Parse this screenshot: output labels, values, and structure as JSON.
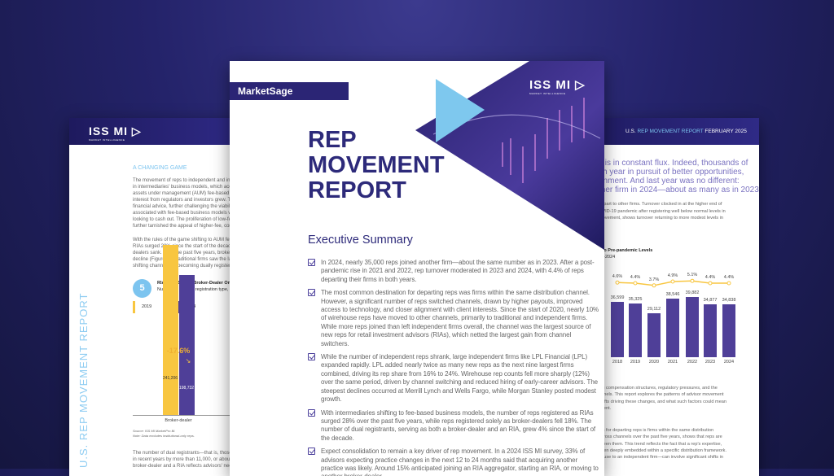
{
  "left_page": {
    "logo": "ISS MI",
    "logo_sub": "MARKET INTELLIGENCE",
    "section_heading": "A CHANGING GAME",
    "para1": [
      "The movement of reps to independent and inve",
      "in intermediaries' business models, which accel",
      "assets under management (AUM) fee-based a",
      "interest from regulators and investors grew. Th",
      "financial advice, further challenging the viabilit",
      "associated with fee-based business models w",
      "looking to cash out. The proliferation of low-fe",
      "further tarnished the appeal of higher-fee, com"
    ],
    "para2": [
      "With the rules of the game shifting to AUM fee",
      "RIAs surged 28% since the start of the decade",
      "dealers sank. Over the past five years, broker-",
      "decline (Figure 5). Traditional firms saw the lar",
      "shifting channels, or becoming dually registere"
    ],
    "figure": {
      "number": "5",
      "title": "RIA Reps Surge, Broker-Dealer Only R",
      "subtitle": "Number of reps by registration type, 2",
      "chart_data": {
        "type": "bar",
        "categories": [
          "Broker-dealer"
        ],
        "series": [
          {
            "name": "2019",
            "values": [
              241206
            ],
            "color": "#f8c640"
          },
          {
            "name": "2024",
            "values": [
              198732
            ],
            "color": "#4f3f98"
          }
        ],
        "value_labels": [
          "241,206",
          "198,732"
        ],
        "annotation": "-17.6%"
      },
      "source": "Source: ISS MI MarketPro BI.",
      "note": "Note: Data excludes institutional-only reps."
    },
    "para3": [
      "The number of dual registrants—that is, those",
      "in recent years by more than 11,000, or about 4",
      "broker-dealer and a RIA reflects advisors' need"
    ],
    "vertical_title": "U.S. REP MOVEMENT REPORT"
  },
  "center_page": {
    "brand": "MarketSage",
    "logo": "ISS MI",
    "logo_sub": "MARKET INTELLIGENCE",
    "title_lines": [
      "REP",
      "MOVEMENT",
      "REPORT"
    ],
    "section": "Executive Summary",
    "bullets": [
      "In 2024, nearly 35,000 reps joined another firm—about the same number as in 2023. After a post-pandemic rise in 2021 and 2022, rep turnover moderated in 2023 and 2024, with 4.4% of reps departing their firms in both years.",
      "The most common destination for departing reps was firms within the same distribution channel. However, a significant number of reps switched channels, drawn by higher payouts, improved access to technology, and closer alignment with client interests. Since the start of 2020, nearly 10% of wirehouse reps have moved to other channels, primarily to traditional and independent firms. While more reps joined than left independent firms overall, the channel was the largest source of new reps for retail investment advisors (RIAs), which netted the largest gain from channel switchers.",
      "While the number of independent reps shrank, large independent firms like LPL Financial (LPL) expanded rapidly. LPL added nearly twice as many new reps as the next nine largest firms combined, driving its rep share from 16% to 24%. Wirehouse rep counts fell more sharply (12%) over the same period, driven by channel switching and reduced hiring of early-career advisors. The steepest declines occurred at Merrill Lynch and Wells Fargo, while Morgan Stanley posted modest growth.",
      "With intermediaries shifting to fee-based business models, the number of reps registered as RIAs surged 28% over the past five years, while reps registered solely as broker-dealers fell 18%. The number of dual registrants, serving as both a broker-dealer and an RIA, grew 4% since the start of the decade.",
      "Expect consolidation to remain a key driver of rep movement. In a 2024 ISS MI survey, 33% of advisors expecting practice changes in the next 12 to 24 months said that acquiring another practice was likely. Around 15% anticipated joining an RIA aggregator, starting an RIA, or moving to another broker-dealer."
    ]
  },
  "right_page": {
    "header_prefix": "U.S. ",
    "header_title": "REP MOVEMENT REPORT",
    "header_date": " FEBRUARY 2025",
    "intro": [
      "s is in constant flux. Indeed, thousands of",
      "ch year in pursuit of better opportunities,",
      "gnment. And last year was no different:",
      "ther firm in 2024—about as many as in 2023."
    ],
    "para1": [
      "depart to other firms. Turnover clocked in at the higher end of",
      "OVID-19 pandemic after registering well below normal levels in",
      "movement, shows turnover returning to more modest levels in"
    ],
    "figure_title": "s to Pre-pandemic Levels",
    "figure_subtitle": "15-2024",
    "chart_data": {
      "type": "bar",
      "categories": [
        "2018",
        "2019",
        "2020",
        "2021",
        "2022",
        "2023",
        "2024"
      ],
      "series": [
        {
          "values": [
            36599,
            35325,
            29112,
            38546,
            39882,
            34877,
            34838
          ],
          "color": "#4f3f98"
        }
      ],
      "bar_labels": [
        "36,599",
        "35,325",
        "29,112",
        "38,546",
        "39,882",
        "34,877",
        "34,838"
      ],
      "line_series": {
        "values": [
          4.6,
          4.4,
          3.7,
          4.9,
          5.1,
          4.4,
          4.4
        ],
        "labels": [
          "4.6%",
          "4.4%",
          "3.7%",
          "4.9%",
          "5.1%",
          "4.4%",
          "4.4%"
        ],
        "color": "#f8c640"
      }
    },
    "para2": [
      "ing compensation structures, regulatory pressures, and the",
      "annels. This report explores the patterns of advisor movement",
      "shifts driving these changes, and what such factors could mean",
      "talent."
    ],
    "para3": [
      "ion for departing reps is firms within the same distribution",
      "across channels over the past five years, shows that reps are",
      "tween them. This trend reflects the fact that a rep's expertise,",
      "often deeply embedded within a specific distribution framework.",
      "house to an independent firm—can involve significant shifts in"
    ]
  }
}
